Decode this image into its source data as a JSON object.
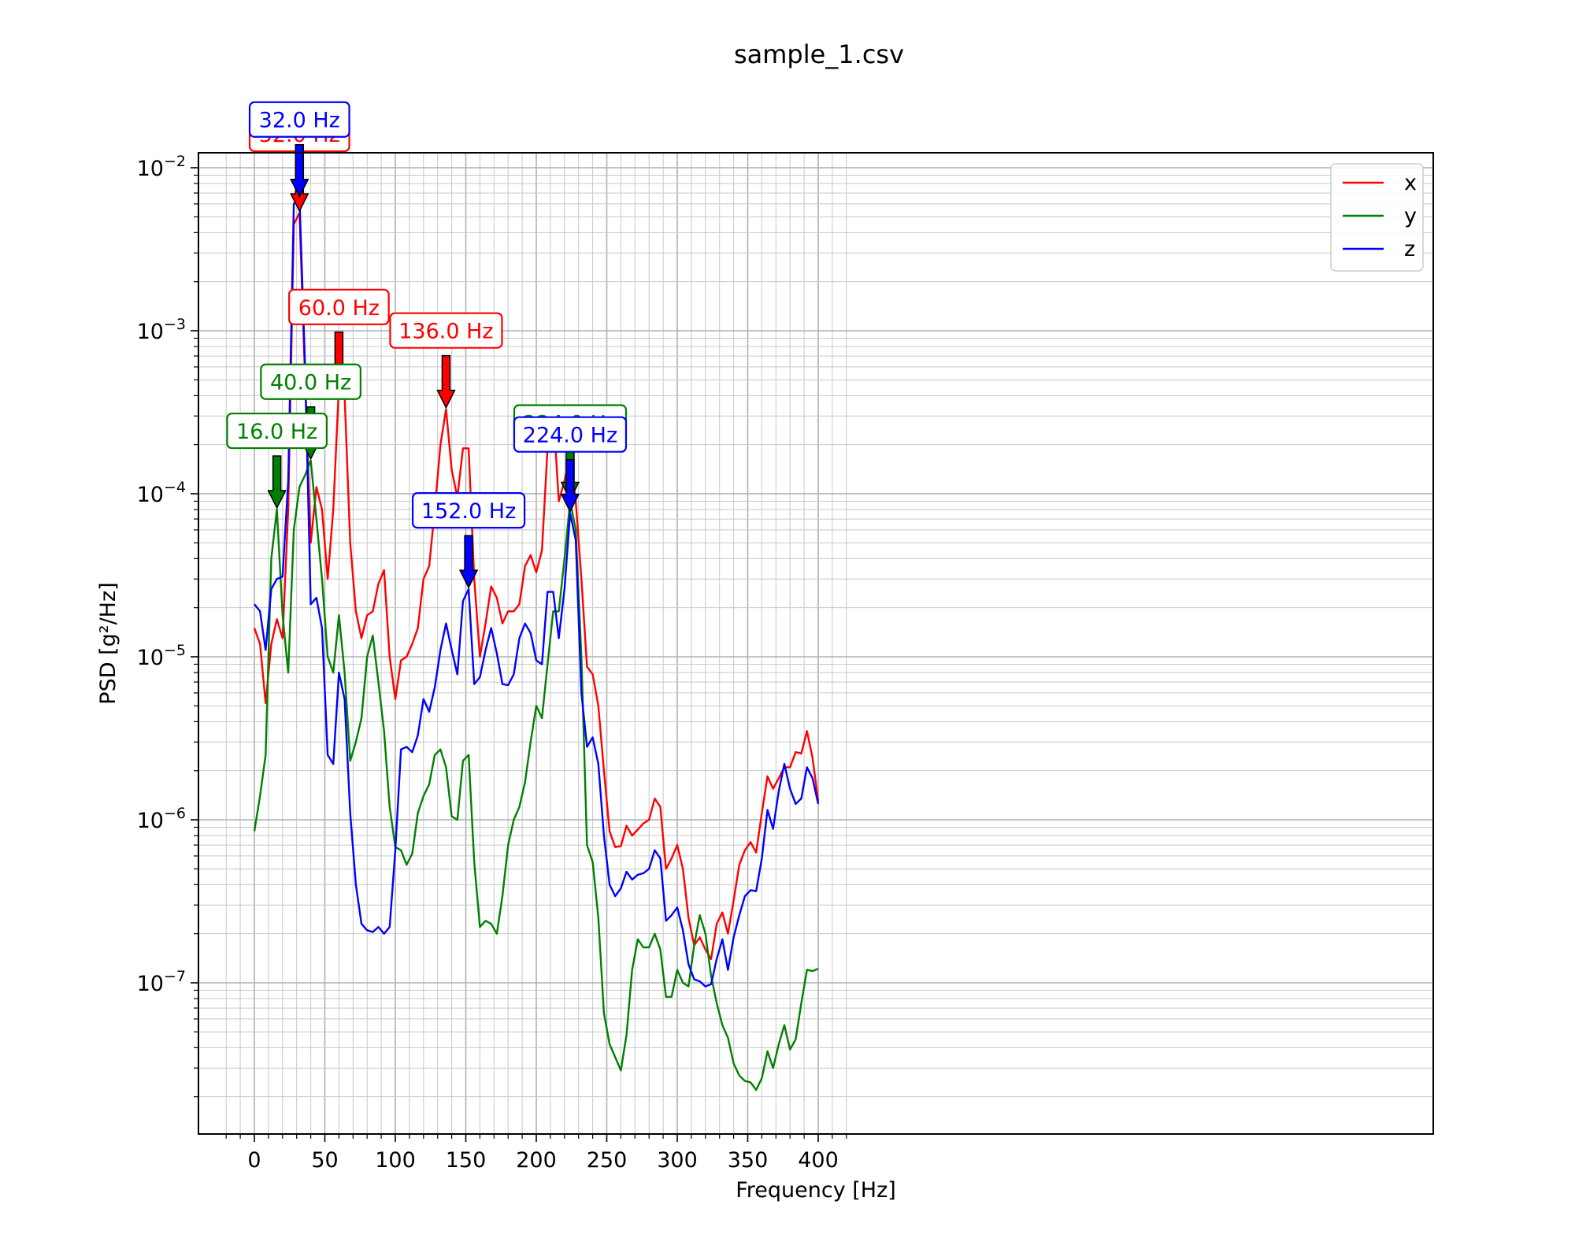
{
  "chart_data": {
    "type": "line",
    "title": "sample_1.csv",
    "xlabel": "Frequency [Hz]",
    "ylabel": "PSD [g²/Hz]",
    "xlim": [
      -20,
      420
    ],
    "ylim": [
      1e-08,
      0.013
    ],
    "yscale": "log",
    "grid": "major and minor",
    "legend_position": "top-right",
    "x_ticks": [
      "0",
      "50",
      "100",
      "150",
      "200",
      "250",
      "300",
      "350",
      "400"
    ],
    "y_ticks": [
      {
        "base": "10",
        "exp": "−2",
        "value": 0.01
      },
      {
        "base": "10",
        "exp": "−3",
        "value": 0.001
      },
      {
        "base": "10",
        "exp": "−4",
        "value": 0.0001
      },
      {
        "base": "10",
        "exp": "−5",
        "value": 1e-05
      },
      {
        "base": "10",
        "exp": "−6",
        "value": 1e-06
      },
      {
        "base": "10",
        "exp": "−7",
        "value": 1e-07
      }
    ],
    "x": [
      0,
      4,
      8,
      12,
      16,
      20,
      24,
      28,
      32,
      36,
      40,
      44,
      48,
      52,
      56,
      60,
      64,
      68,
      72,
      76,
      80,
      84,
      88,
      92,
      96,
      100,
      104,
      108,
      112,
      116,
      120,
      124,
      128,
      132,
      136,
      140,
      144,
      148,
      152,
      156,
      160,
      164,
      168,
      172,
      176,
      180,
      184,
      188,
      192,
      196,
      200,
      204,
      208,
      212,
      216,
      220,
      224,
      228,
      232,
      236,
      240,
      244,
      248,
      252,
      256,
      260,
      264,
      268,
      272,
      276,
      280,
      284,
      288,
      292,
      296,
      300,
      304,
      308,
      312,
      316,
      320,
      324,
      328,
      332,
      336,
      340,
      344,
      348,
      352,
      356,
      360,
      364,
      368,
      372,
      376,
      380,
      384,
      388,
      392,
      396,
      400
    ],
    "series": [
      {
        "name": "x",
        "color": "#ff0000",
        "values": [
          1.5e-05,
          1.2e-05,
          5.2e-06,
          1.2e-05,
          1.7e-05,
          1.3e-05,
          8e-05,
          0.0045,
          0.0053,
          0.0005,
          5e-05,
          0.00011,
          8e-05,
          3e-05,
          8e-05,
          0.00046,
          0.0004,
          5e-05,
          1.9e-05,
          1.3e-05,
          1.8e-05,
          1.9e-05,
          2.8e-05,
          3.4e-05,
          1e-05,
          5.5e-06,
          9.5e-06,
          1e-05,
          1.2e-05,
          1.5e-05,
          3e-05,
          3.6e-05,
          8e-05,
          0.0002,
          0.00033,
          0.00014,
          9.5e-05,
          0.00019,
          0.00019,
          3e-05,
          1e-05,
          1.6e-05,
          2.7e-05,
          2.3e-05,
          1.6e-05,
          1.9e-05,
          1.9e-05,
          2.1e-05,
          3.6e-05,
          4.2e-05,
          3.3e-05,
          4.5e-05,
          0.00019,
          0.00032,
          9e-05,
          0.00012,
          0.00017,
          9e-05,
          3e-05,
          8.7e-06,
          7.8e-06,
          5e-06,
          2e-06,
          8.5e-07,
          6.8e-07,
          6.9e-07,
          9.2e-07,
          8e-07,
          8.7e-07,
          9.5e-07,
          1e-06,
          1.35e-06,
          1.2e-06,
          5e-07,
          5.8e-07,
          7e-07,
          5e-07,
          2.5e-07,
          1.7e-07,
          1.9e-07,
          1.6e-07,
          1.4e-07,
          2.3e-07,
          2.7e-07,
          2e-07,
          3.2e-07,
          5.3e-07,
          6.5e-07,
          7.3e-07,
          6.3e-07,
          1.1e-06,
          1.85e-06,
          1.55e-06,
          1.8e-06,
          2.1e-06,
          2.1e-06,
          2.6e-06,
          2.55e-06,
          3.5e-06,
          2.4e-06,
          1.3e-06
        ]
      },
      {
        "name": "y",
        "color": "#008000",
        "values": [
          8.5e-07,
          1.4e-06,
          2.5e-06,
          4e-05,
          8e-05,
          1.8e-05,
          8e-06,
          6e-05,
          0.00011,
          0.00013,
          0.00016,
          7e-05,
          3e-05,
          1e-05,
          8e-06,
          1.8e-05,
          8e-06,
          2.3e-06,
          3e-06,
          4.2e-06,
          1e-05,
          1.35e-05,
          7e-06,
          3.5e-06,
          1.2e-06,
          6.8e-07,
          6.5e-07,
          5.3e-07,
          6.2e-07,
          1.1e-06,
          1.4e-06,
          1.65e-06,
          2.5e-06,
          2.7e-06,
          2.1e-06,
          1.05e-06,
          1e-06,
          2.3e-06,
          2.5e-06,
          5.5e-07,
          2.2e-07,
          2.4e-07,
          2.3e-07,
          2e-07,
          3.4e-07,
          7e-07,
          1e-06,
          1.2e-06,
          1.7e-06,
          3e-06,
          5e-06,
          4.2e-06,
          9e-06,
          1.9e-05,
          1.9e-05,
          4e-05,
          9e-05,
          6e-05,
          1e-05,
          7e-07,
          5.5e-07,
          2.5e-07,
          6.5e-08,
          4.2e-08,
          3.5e-08,
          2.9e-08,
          4.8e-08,
          1.2e-07,
          1.85e-07,
          1.65e-07,
          1.65e-07,
          2e-07,
          1.6e-07,
          8.2e-08,
          8.2e-08,
          1.2e-07,
          1e-07,
          9.5e-08,
          1.7e-07,
          2.6e-07,
          2e-07,
          1.1e-07,
          7.5e-08,
          5.5e-08,
          4.6e-08,
          3.2e-08,
          2.7e-08,
          2.5e-08,
          2.45e-08,
          2.2e-08,
          2.6e-08,
          3.8e-08,
          3e-08,
          4.2e-08,
          5.5e-08,
          3.9e-08,
          4.5e-08,
          7.5e-08,
          1.2e-07,
          1.18e-07,
          1.22e-07
        ]
      },
      {
        "name": "z",
        "color": "#0000ff",
        "values": [
          2.1e-05,
          1.9e-05,
          1.1e-05,
          2.6e-05,
          3e-05,
          3.1e-05,
          0.00012,
          0.006,
          0.0065,
          0.0006,
          2.1e-05,
          2.3e-05,
          1.5e-05,
          2.5e-06,
          2.2e-06,
          8e-06,
          5.5e-06,
          1.1e-06,
          4e-07,
          2.3e-07,
          2.1e-07,
          2.05e-07,
          2.2e-07,
          2e-07,
          2.2e-07,
          6.5e-07,
          2.7e-06,
          2.8e-06,
          2.6e-06,
          3.3e-06,
          5.5e-06,
          4.6e-06,
          6.5e-06,
          1.1e-05,
          1.6e-05,
          1.1e-05,
          7.8e-06,
          2.2e-05,
          2.6e-05,
          6.8e-06,
          7.5e-06,
          1.1e-05,
          1.5e-05,
          1.05e-05,
          6.8e-06,
          6.7e-06,
          7.8e-06,
          1.3e-05,
          1.6e-05,
          1.4e-05,
          9.5e-06,
          9e-06,
          2.5e-05,
          2.5e-05,
          1.3e-05,
          2.6e-05,
          7.6e-05,
          5.2e-05,
          6e-06,
          2.8e-06,
          3.2e-06,
          2.2e-06,
          8e-07,
          4e-07,
          3.4e-07,
          3.8e-07,
          4.8e-07,
          4.3e-07,
          4.6e-07,
          4.7e-07,
          5e-07,
          6.5e-07,
          5.8e-07,
          2.4e-07,
          2.6e-07,
          2.9e-07,
          2.1e-07,
          1.3e-07,
          1.05e-07,
          1.02e-07,
          9.5e-08,
          9.8e-08,
          1.4e-07,
          1.85e-07,
          1.2e-07,
          1.9e-07,
          2.6e-07,
          3.4e-07,
          3.7e-07,
          3.65e-07,
          5.8e-07,
          1.15e-06,
          8.8e-07,
          1.5e-06,
          2.2e-06,
          1.55e-06,
          1.25e-06,
          1.35e-06,
          2.1e-06,
          1.8e-06,
          1.25e-06
        ]
      }
    ],
    "annotations": [
      {
        "series": "x",
        "label": "32.0 Hz",
        "x": 32,
        "y": 0.0053
      },
      {
        "series": "z",
        "label": "32.0 Hz",
        "x": 32,
        "y": 0.0065
      },
      {
        "series": "x",
        "label": "60.0 Hz",
        "x": 60,
        "y": 0.00046
      },
      {
        "series": "y",
        "label": "40.0 Hz",
        "x": 40,
        "y": 0.00016
      },
      {
        "series": "y",
        "label": "16.0 Hz",
        "x": 16,
        "y": 8e-05
      },
      {
        "series": "x",
        "label": "136.0 Hz",
        "x": 136,
        "y": 0.00033
      },
      {
        "series": "z",
        "label": "152.0 Hz",
        "x": 152,
        "y": 2.6e-05
      },
      {
        "series": "y",
        "label": "224.0 Hz",
        "x": 224,
        "y": 9e-05
      },
      {
        "series": "z",
        "label": "224.0 Hz",
        "x": 224,
        "y": 7.6e-05
      }
    ]
  }
}
